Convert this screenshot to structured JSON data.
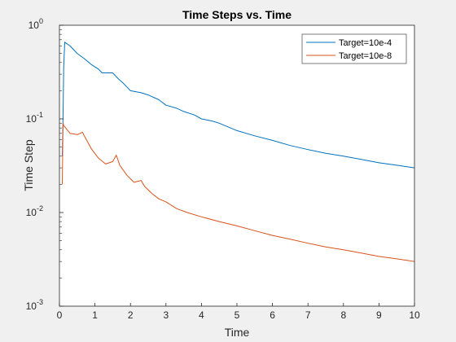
{
  "chart_data": {
    "type": "line",
    "title": "Time Steps vs. Time",
    "xlabel": "Time",
    "ylabel": "Time Step",
    "xlim": [
      0,
      10
    ],
    "ylim": [
      0.001,
      1
    ],
    "yscale": "log",
    "grid": false,
    "legend_position": "top-right",
    "x_ticks": [
      "0",
      "1",
      "2",
      "3",
      "4",
      "5",
      "6",
      "7",
      "8",
      "9",
      "10"
    ],
    "y_ticks": [
      {
        "value": 0.001,
        "base": "10",
        "exp": "-3"
      },
      {
        "value": 0.01,
        "base": "10",
        "exp": "-2"
      },
      {
        "value": 0.1,
        "base": "10",
        "exp": "-1"
      },
      {
        "value": 1,
        "base": "10",
        "exp": "0"
      }
    ],
    "series": [
      {
        "name": "Target=10e-4",
        "color": "#0072BD",
        "x": [
          0.08,
          0.1,
          0.12,
          0.15,
          0.3,
          0.5,
          0.7,
          0.9,
          1.1,
          1.2,
          1.5,
          1.65,
          1.8,
          2.0,
          2.3,
          2.5,
          2.8,
          3.0,
          3.3,
          3.5,
          3.8,
          4.0,
          4.3,
          4.5,
          5.0,
          5.5,
          6.0,
          6.5,
          7.0,
          7.5,
          8.0,
          8.5,
          9.0,
          9.5,
          10.0
        ],
        "y": [
          0.04,
          0.1,
          0.35,
          0.66,
          0.6,
          0.5,
          0.44,
          0.38,
          0.34,
          0.31,
          0.31,
          0.27,
          0.24,
          0.2,
          0.19,
          0.18,
          0.16,
          0.14,
          0.13,
          0.12,
          0.11,
          0.1,
          0.095,
          0.09,
          0.075,
          0.066,
          0.059,
          0.052,
          0.047,
          0.043,
          0.04,
          0.037,
          0.034,
          0.032,
          0.03
        ]
      },
      {
        "name": "Target=10e-8",
        "color": "#D95319",
        "x": [
          0.08,
          0.1,
          0.12,
          0.2,
          0.3,
          0.5,
          0.65,
          0.7,
          0.9,
          1.1,
          1.3,
          1.5,
          1.6,
          1.7,
          1.9,
          2.1,
          2.3,
          2.4,
          2.6,
          2.8,
          3.0,
          3.3,
          3.6,
          4.0,
          4.5,
          5.0,
          5.5,
          6.0,
          6.5,
          7.0,
          7.5,
          8.0,
          8.5,
          9.0,
          9.5,
          10.0
        ],
        "y": [
          0.02,
          0.09,
          0.085,
          0.078,
          0.07,
          0.068,
          0.072,
          0.066,
          0.048,
          0.038,
          0.033,
          0.035,
          0.041,
          0.032,
          0.025,
          0.021,
          0.022,
          0.019,
          0.016,
          0.014,
          0.013,
          0.011,
          0.01,
          0.009,
          0.008,
          0.0072,
          0.0064,
          0.0057,
          0.0052,
          0.0047,
          0.0043,
          0.004,
          0.0037,
          0.0034,
          0.0032,
          0.003
        ]
      }
    ]
  }
}
